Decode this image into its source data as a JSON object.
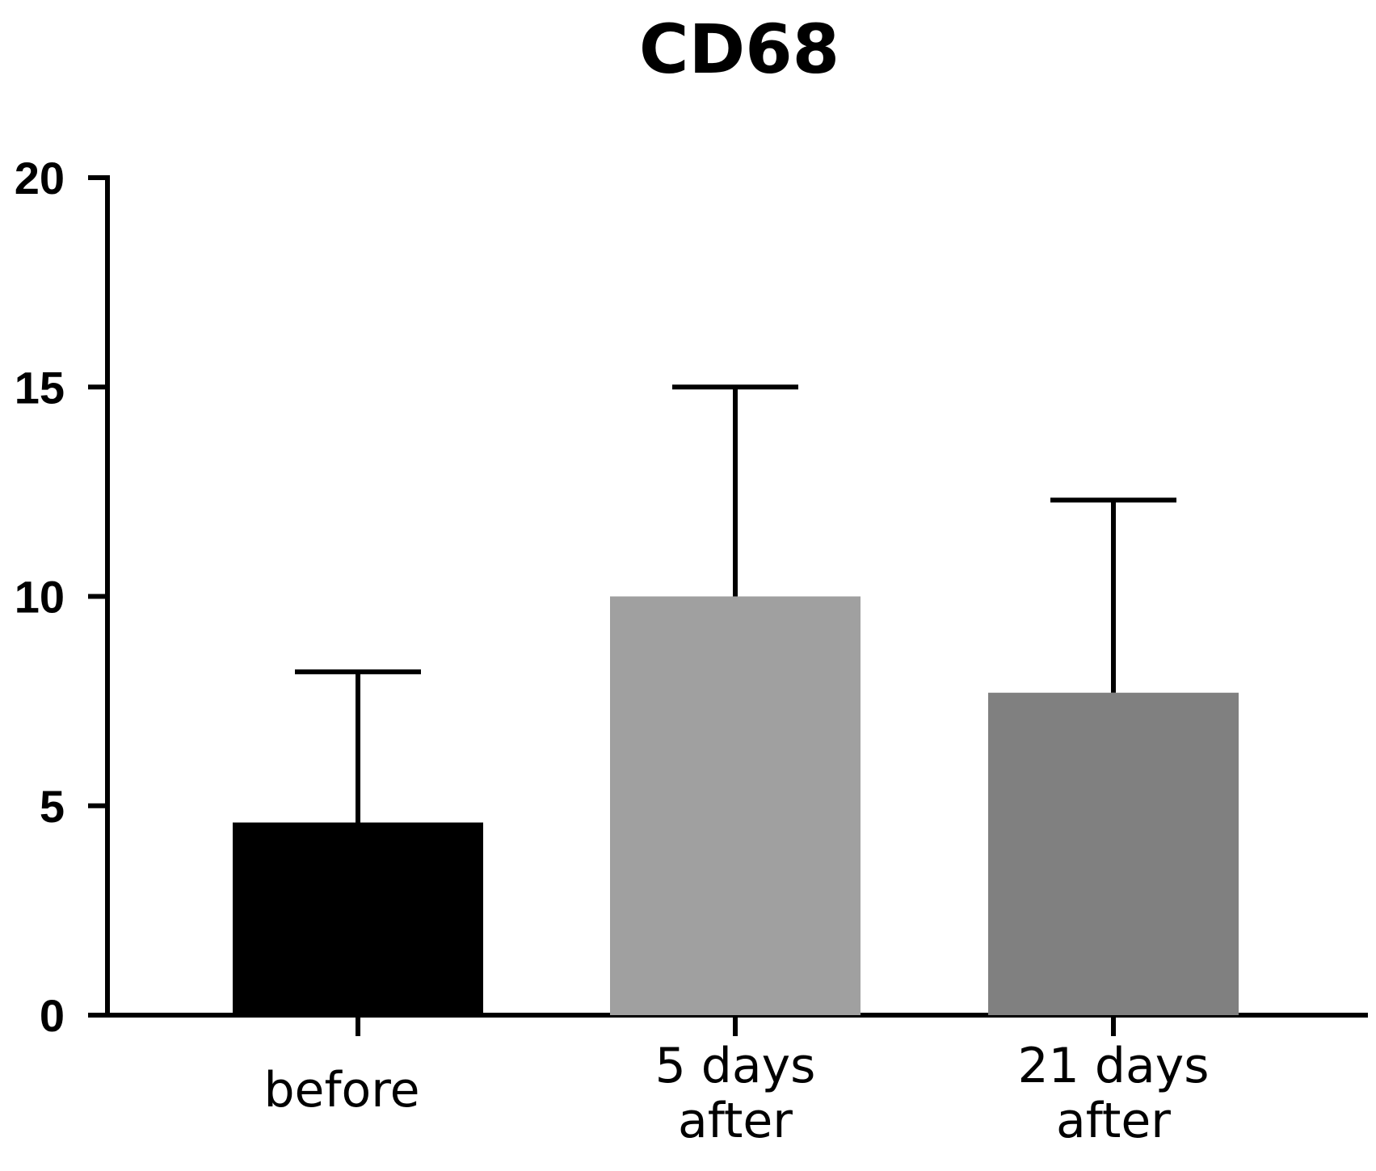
{
  "chart_data": {
    "type": "bar",
    "title": "CD68",
    "xlabel": "",
    "ylabel": "",
    "ylim": [
      0,
      20
    ],
    "yticks": [
      0,
      5,
      10,
      15,
      20
    ],
    "grid": false,
    "categories": [
      [
        "before"
      ],
      [
        "5 days",
        "after"
      ],
      [
        "21 days",
        "after"
      ]
    ],
    "values": [
      4.6,
      10.0,
      7.7
    ],
    "error_upper": [
      8.2,
      15.0,
      12.3
    ],
    "colors": [
      "#000000",
      "#a0a0a0",
      "#808080"
    ]
  }
}
